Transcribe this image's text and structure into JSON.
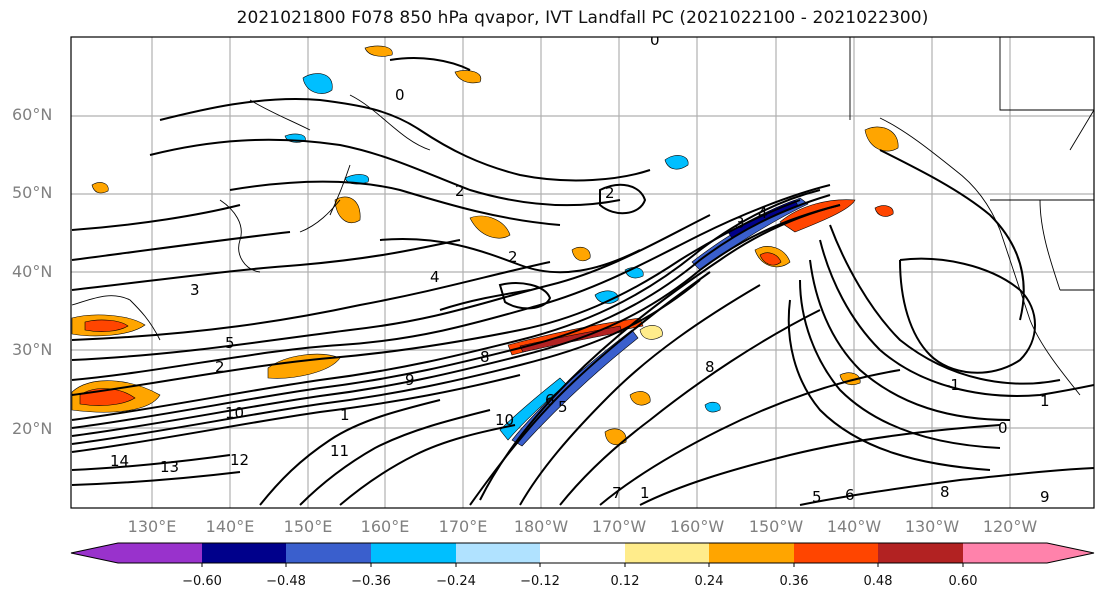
{
  "title": "2021021800 F078 850 hPa qvapor, IVT Landfall PC (2021022100 - 2021022300)",
  "lat_labels": [
    "60°N",
    "50°N",
    "40°N",
    "30°N",
    "20°N"
  ],
  "lon_labels": [
    "130°E",
    "140°E",
    "150°E",
    "160°E",
    "170°E",
    "180°W",
    "170°W",
    "160°W",
    "150°W",
    "140°W",
    "130°W",
    "120°W"
  ],
  "colorbar": {
    "colors": [
      "#9932cc",
      "#00008b",
      "#3a5fcd",
      "#00bfff",
      "#b0e2ff",
      "#ffffff",
      "#ffec8b",
      "#ffa500",
      "#ff4500",
      "#b22222",
      "#ff82ab"
    ],
    "tick_labels": [
      "−0.60",
      "−0.48",
      "−0.36",
      "−0.24",
      "−0.12",
      "0.12",
      "0.24",
      "0.36",
      "0.48",
      "0.60"
    ]
  },
  "contour_labels": [
    "0",
    "0",
    "2",
    "2",
    "2",
    "3",
    "3",
    "4",
    "4",
    "5",
    "5",
    "6",
    "7",
    "8",
    "8",
    "9",
    "10",
    "10",
    "11",
    "12",
    "13",
    "14",
    "1",
    "1",
    "1",
    "-1",
    "0",
    "8",
    "9",
    "6",
    "5",
    "2"
  ]
}
